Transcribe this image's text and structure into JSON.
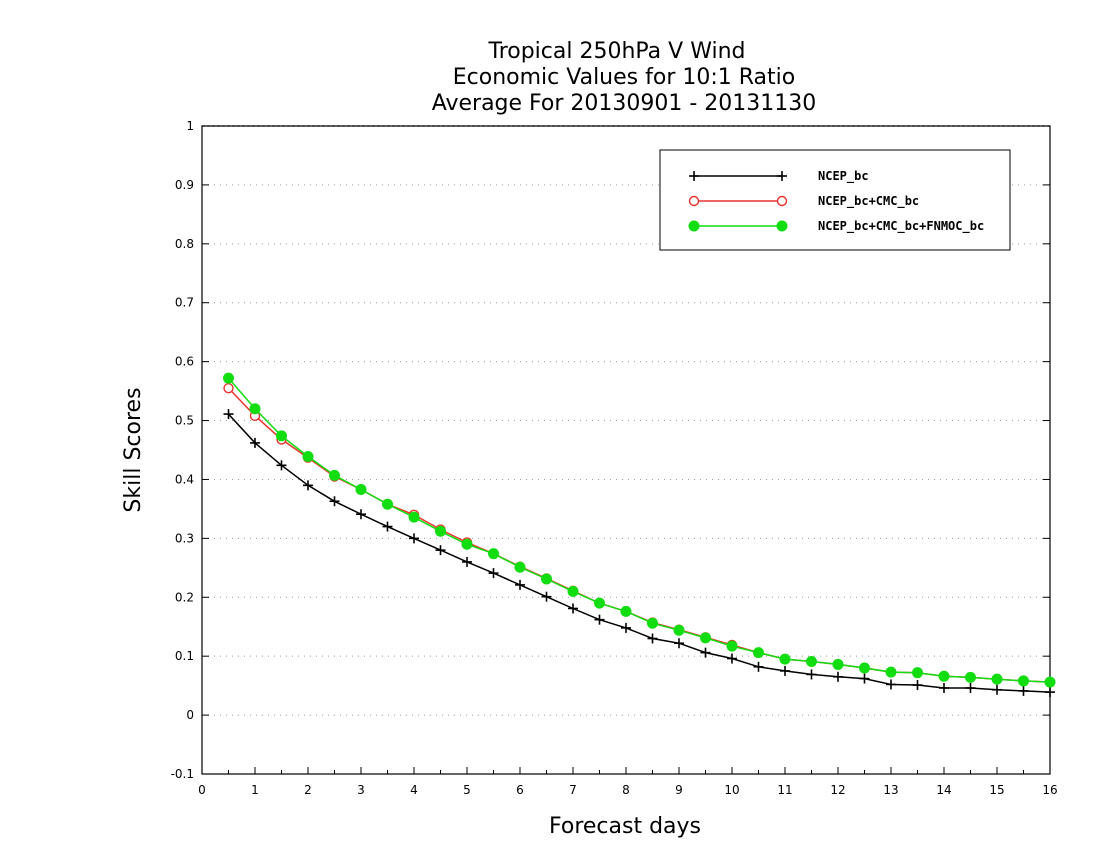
{
  "chart_data": {
    "type": "line",
    "title": [
      "Tropical 250hPa V Wind",
      "Economic Values for 10:1 Ratio",
      "Average For 20130901 - 20131130"
    ],
    "xlabel": "Forecast days",
    "ylabel": "Skill Scores",
    "xlim": [
      0,
      16
    ],
    "ylim": [
      -0.1,
      1
    ],
    "xticks": [
      0,
      1,
      2,
      3,
      4,
      5,
      6,
      7,
      8,
      9,
      10,
      11,
      12,
      13,
      14,
      15,
      16
    ],
    "yticks": [
      -0.1,
      0,
      0.1,
      0.2,
      0.3,
      0.4,
      0.5,
      0.6,
      0.7,
      0.8,
      0.9,
      1
    ],
    "ytick_labels": [
      "-0.1",
      "0",
      "0.1",
      "0.2",
      "0.3",
      "0.4",
      "0.5",
      "0.6",
      "0.7",
      "0.8",
      "0.9",
      "1"
    ],
    "grid": "horizontal-dotted",
    "legend_position": "top-right",
    "x": [
      0.5,
      1,
      1.5,
      2,
      2.5,
      3,
      3.5,
      4,
      4.5,
      5,
      5.5,
      6,
      6.5,
      7,
      7.5,
      8,
      8.5,
      9,
      9.5,
      10,
      10.5,
      11,
      11.5,
      12,
      12.5,
      13,
      13.5,
      14,
      14.5,
      15,
      15.5,
      16
    ],
    "series": [
      {
        "name": "NCEP_bc",
        "color": "#000000",
        "marker": "plus",
        "values": [
          0.511,
          0.462,
          0.424,
          0.39,
          0.363,
          0.341,
          0.32,
          0.3,
          0.28,
          0.26,
          0.241,
          0.221,
          0.201,
          0.181,
          0.162,
          0.148,
          0.13,
          0.122,
          0.106,
          0.096,
          0.082,
          0.075,
          0.069,
          0.065,
          0.062,
          0.052,
          0.051,
          0.046,
          0.046,
          0.043,
          0.041,
          0.039
        ]
      },
      {
        "name": "NCEP_bc+CMC_bc",
        "color": "#e8332e",
        "marker": "open-circle",
        "values": [
          0.555,
          0.508,
          0.468,
          0.437,
          0.405,
          0.383,
          0.358,
          0.34,
          0.315,
          0.293,
          0.274,
          0.252,
          0.232,
          0.211,
          0.19,
          0.176,
          0.157,
          0.145,
          0.132,
          0.119,
          0.106,
          0.095,
          0.091,
          0.086,
          0.08,
          0.073,
          0.072,
          0.066,
          0.064,
          0.061,
          0.058,
          0.056
        ]
      },
      {
        "name": "NCEP_bc+CMC_bc+FNMOC_bc",
        "color": "#11dd11",
        "marker": "filled-circle",
        "values": [
          0.572,
          0.52,
          0.474,
          0.439,
          0.407,
          0.383,
          0.358,
          0.336,
          0.312,
          0.29,
          0.274,
          0.251,
          0.231,
          0.21,
          0.19,
          0.176,
          0.156,
          0.144,
          0.131,
          0.117,
          0.106,
          0.095,
          0.091,
          0.086,
          0.08,
          0.073,
          0.072,
          0.066,
          0.064,
          0.061,
          0.058,
          0.056
        ]
      }
    ]
  }
}
